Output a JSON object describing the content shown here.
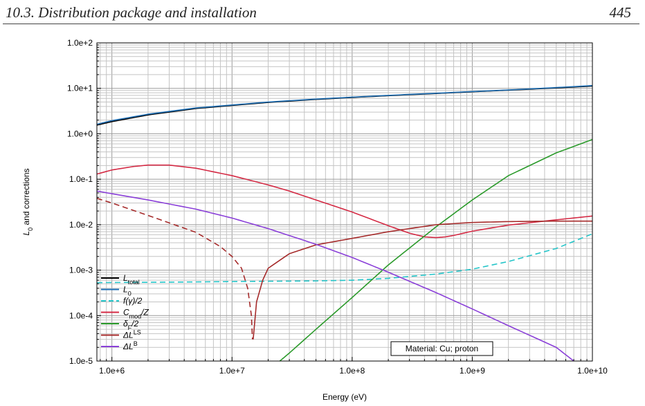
{
  "header": {
    "section_title": "10.3. Distribution package and installation",
    "page_number": "445"
  },
  "chart_data": {
    "type": "line",
    "title": "",
    "xlabel": "Energy  (eV)",
    "ylabel": "L0 and corrections",
    "ylabel_base": "L",
    "ylabel_sub": "0",
    "ylabel_rest": " and corrections",
    "x_scale": "log",
    "y_scale": "log",
    "xlim": [
      750000.0,
      10000000000.0
    ],
    "ylim": [
      1e-05,
      100.0
    ],
    "x_ticks": [
      {
        "value": 1000000.0,
        "label": "1.0e+6"
      },
      {
        "value": 10000000.0,
        "label": "1.0e+7"
      },
      {
        "value": 100000000.0,
        "label": "1.0e+8"
      },
      {
        "value": 1000000000.0,
        "label": "1.0e+9"
      },
      {
        "value": 10000000000.0,
        "label": "1.0e+10"
      }
    ],
    "y_ticks": [
      {
        "value": 1e-05,
        "label": "1.0e-5"
      },
      {
        "value": 0.0001,
        "label": "1.0e-4"
      },
      {
        "value": 0.001,
        "label": "1.0e-3"
      },
      {
        "value": 0.01,
        "label": "1.0e-2"
      },
      {
        "value": 0.1,
        "label": "1.0e-1"
      },
      {
        "value": 1.0,
        "label": "1.0e+0"
      },
      {
        "value": 10.0,
        "label": "1.0e+1"
      },
      {
        "value": 100.0,
        "label": "1.0e+2"
      }
    ],
    "grid": true,
    "legend_position": "bottom-left",
    "annotation": "Material: Cu;  proton",
    "series": [
      {
        "name": "Ltotal",
        "label_base": "L",
        "label_sub": "total",
        "label_sup": "",
        "label_rest": "",
        "color": "#000000",
        "dash": false,
        "x": [
          750000.0,
          1000000.0,
          2000000.0,
          5000000.0,
          10000000.0,
          20000000.0,
          50000000.0,
          100000000.0,
          200000000.0,
          500000000.0,
          1000000000.0,
          2000000000.0,
          5000000000.0,
          10000000000.0
        ],
        "y": [
          1.55,
          1.85,
          2.6,
          3.6,
          4.2,
          4.9,
          5.7,
          6.3,
          6.9,
          7.7,
          8.4,
          9.1,
          10.2,
          11.2
        ]
      },
      {
        "name": "L0",
        "label_base": "L",
        "label_sub": "0",
        "label_sup": "",
        "label_rest": "",
        "color": "#1f6fb4",
        "dash": false,
        "x": [
          750000.0,
          1000000.0,
          2000000.0,
          5000000.0,
          10000000.0,
          20000000.0,
          50000000.0,
          100000000.0,
          200000000.0,
          500000000.0,
          1000000000.0,
          2000000000.0,
          5000000000.0,
          10000000000.0
        ],
        "y": [
          1.62,
          1.95,
          2.7,
          3.7,
          4.3,
          5.0,
          5.8,
          6.4,
          7.0,
          7.8,
          8.5,
          9.2,
          10.4,
          11.5
        ]
      },
      {
        "name": "f(γ)/2",
        "label_base": "f(γ)/2",
        "label_sub": "",
        "label_sup": "",
        "label_rest": "",
        "color": "#22c4c8",
        "dash": true,
        "x": [
          750000.0,
          1000000.0,
          2000000.0,
          5000000.0,
          10000000.0,
          20000000.0,
          50000000.0,
          100000000.0,
          200000000.0,
          500000000.0,
          1000000000.0,
          2000000000.0,
          5000000000.0,
          10000000000.0
        ],
        "y": [
          0.00053,
          0.000535,
          0.00054,
          0.00055,
          0.00056,
          0.00057,
          0.00058,
          0.0006,
          0.00066,
          0.00082,
          0.00105,
          0.00155,
          0.003,
          0.0063
        ]
      },
      {
        "name": "Cmod/Z",
        "label_base": "C",
        "label_sub": "mod",
        "label_sup": "",
        "label_rest": "/Z",
        "color": "#d42a44",
        "dash": false,
        "x": [
          750000.0,
          1000000.0,
          1500000.0,
          2000000.0,
          3000000.0,
          5000000.0,
          10000000.0,
          20000000.0,
          30000000.0,
          50000000.0,
          100000000.0,
          200000000.0,
          300000000.0,
          400000000.0,
          500000000.0,
          600000000.0,
          700000000.0,
          1000000000.0,
          2000000000.0,
          5000000000.0,
          10000000000.0
        ],
        "y": [
          0.13,
          0.16,
          0.19,
          0.205,
          0.205,
          0.175,
          0.12,
          0.075,
          0.055,
          0.035,
          0.019,
          0.0095,
          0.0065,
          0.0054,
          0.0052,
          0.0054,
          0.0058,
          0.0072,
          0.0098,
          0.0128,
          0.0155
        ]
      },
      {
        "name": "δF/2",
        "label_base": "δ",
        "label_sub": "F",
        "label_sup": "",
        "label_rest": "/2",
        "color": "#2a9a2a",
        "dash": false,
        "x": [
          25000000.0,
          30000000.0,
          50000000.0,
          100000000.0,
          200000000.0,
          500000000.0,
          1000000000.0,
          2000000000.0,
          5000000000.0,
          10000000000.0
        ],
        "y": [
          1e-05,
          1.5e-05,
          5e-05,
          0.00025,
          0.0013,
          0.009,
          0.035,
          0.12,
          0.38,
          0.75
        ]
      },
      {
        "name": "ΔLLS",
        "label_base": "ΔL",
        "label_sub": "",
        "label_sup": "LS",
        "label_rest": "",
        "color": "#a52a2a",
        "dash": false,
        "neg_x": [
          750000.0,
          1000000.0,
          2000000.0,
          5000000.0,
          8000000.0,
          10000000.0,
          12000000.0,
          13500000.0,
          14500000.0,
          14800000.0
        ],
        "neg_y": [
          0.038,
          0.03,
          0.016,
          0.0068,
          0.0033,
          0.002,
          0.0011,
          0.0004,
          0.0001,
          3e-05
        ],
        "x": [
          15000000.0,
          16000000.0,
          18000000.0,
          20000000.0,
          30000000.0,
          50000000.0,
          100000000.0,
          200000000.0,
          500000000.0,
          1000000000.0,
          2000000000.0,
          5000000000.0,
          10000000000.0
        ],
        "y": [
          3e-05,
          0.0002,
          0.0006,
          0.0011,
          0.0023,
          0.0036,
          0.005,
          0.007,
          0.01,
          0.0112,
          0.0117,
          0.012,
          0.012
        ]
      },
      {
        "name": "ΔLB",
        "label_base": "ΔL",
        "label_sub": "",
        "label_sup": "B",
        "label_rest": "",
        "color": "#8a3fd8",
        "dash": false,
        "x": [
          750000.0,
          1000000.0,
          2000000.0,
          5000000.0,
          10000000.0,
          20000000.0,
          50000000.0,
          100000000.0,
          200000000.0,
          500000000.0,
          1000000000.0,
          2000000000.0,
          5000000000.0,
          7000000000.0
        ],
        "y": [
          0.055,
          0.048,
          0.035,
          0.022,
          0.014,
          0.0082,
          0.0037,
          0.0019,
          0.0009,
          0.00032,
          0.00014,
          6e-05,
          2e-05,
          1e-05
        ]
      }
    ]
  }
}
